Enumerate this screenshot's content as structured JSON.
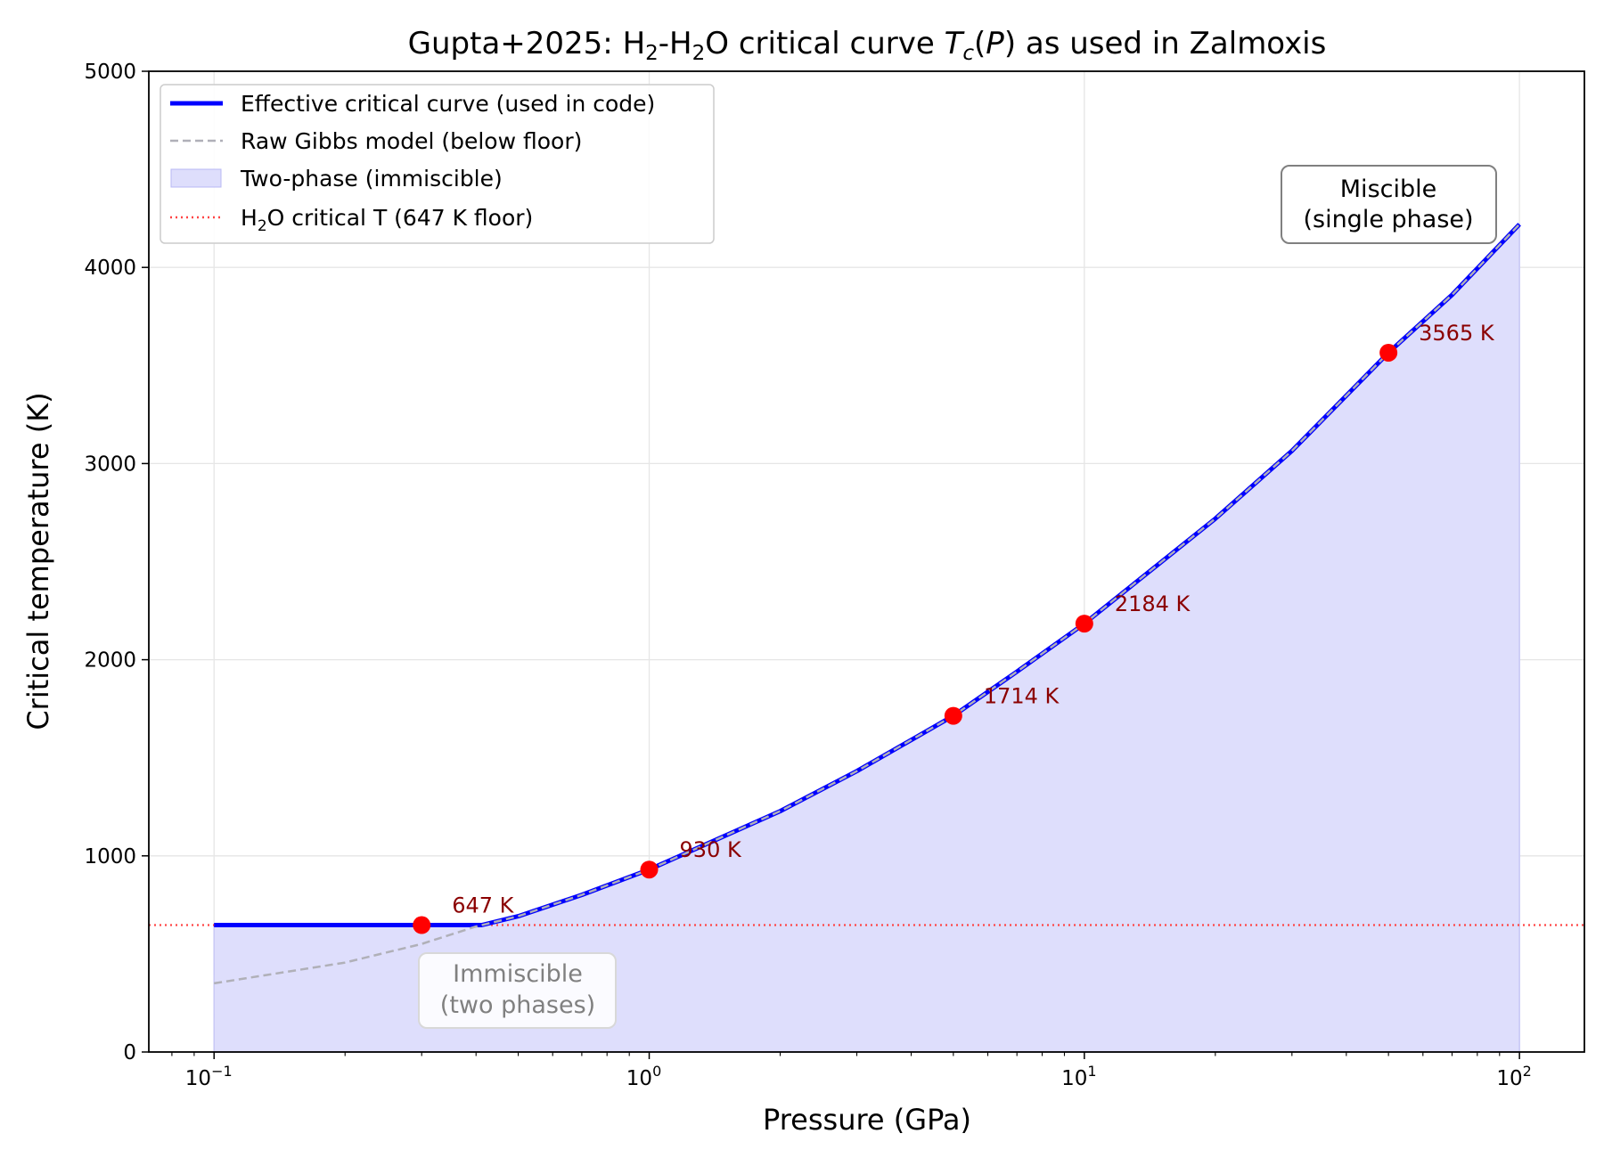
{
  "chart_data": {
    "type": "line",
    "title_parts": {
      "a": "Gupta+2025: H",
      "s1": "2",
      "b": "-H",
      "s2": "2",
      "c": "O critical curve ",
      "tc": "T",
      "tcs": "c",
      "d": "(",
      "p": "P",
      "e": ") as used in Zalmoxis"
    },
    "xlabel": "Pressure (GPa)",
    "ylabel": "Critical temperature (K)",
    "xscale": "log",
    "xlim": [
      0.0708,
      141
    ],
    "ylim": [
      0,
      5000
    ],
    "xticks": [
      {
        "v": 0.1,
        "base": "10",
        "exp": "−1"
      },
      {
        "v": 1,
        "base": "10",
        "exp": "0"
      },
      {
        "v": 10,
        "base": "10",
        "exp": "1"
      },
      {
        "v": 100,
        "base": "10",
        "exp": "2"
      }
    ],
    "yticks": [
      0,
      1000,
      2000,
      3000,
      4000,
      5000
    ],
    "ytick_labels": [
      "0",
      "1000",
      "2000",
      "3000",
      "4000",
      "5000"
    ],
    "grid": true,
    "floor_T": 647,
    "raw_curve": {
      "P": [
        0.1,
        0.2,
        0.3,
        0.4,
        0.5,
        0.7,
        1,
        2,
        3,
        5,
        7,
        10,
        20,
        30,
        50,
        70,
        100
      ],
      "T": [
        350,
        456,
        551,
        640,
        692,
        801,
        930,
        1228,
        1432,
        1714,
        1939,
        2184,
        2719,
        3065,
        3565,
        3860,
        4220
      ]
    },
    "markers": [
      {
        "P": 0.3,
        "T": 647,
        "label": "647 K"
      },
      {
        "P": 1,
        "T": 930,
        "label": "930 K"
      },
      {
        "P": 5,
        "T": 1714,
        "label": "1714 K"
      },
      {
        "P": 10,
        "T": 2184,
        "label": "2184 K"
      },
      {
        "P": 50,
        "T": 3565,
        "label": "3565 K"
      }
    ],
    "legend": {
      "placement": "upper-left",
      "entries": [
        {
          "label": "Effective critical curve (used in code)",
          "style": "solid"
        },
        {
          "label": "Raw Gibbs model (below floor)",
          "style": "dashed"
        },
        {
          "label": "Two-phase (immiscible)",
          "style": "fill"
        },
        {
          "pre": "H",
          "sub": "2",
          "post": "O critical T (647 K floor)",
          "style": "dotted"
        }
      ]
    },
    "annotations": {
      "miscible": [
        "Miscible",
        "(single phase)"
      ],
      "immiscible": [
        "Immiscible",
        "(two phases)"
      ]
    },
    "colors": {
      "effective": "#0000ff",
      "raw": "#b0b0b8",
      "fill": "#dedefc",
      "floor": "#ff4444",
      "marker": "#ff0000",
      "marker_label": "#8b0000"
    }
  }
}
